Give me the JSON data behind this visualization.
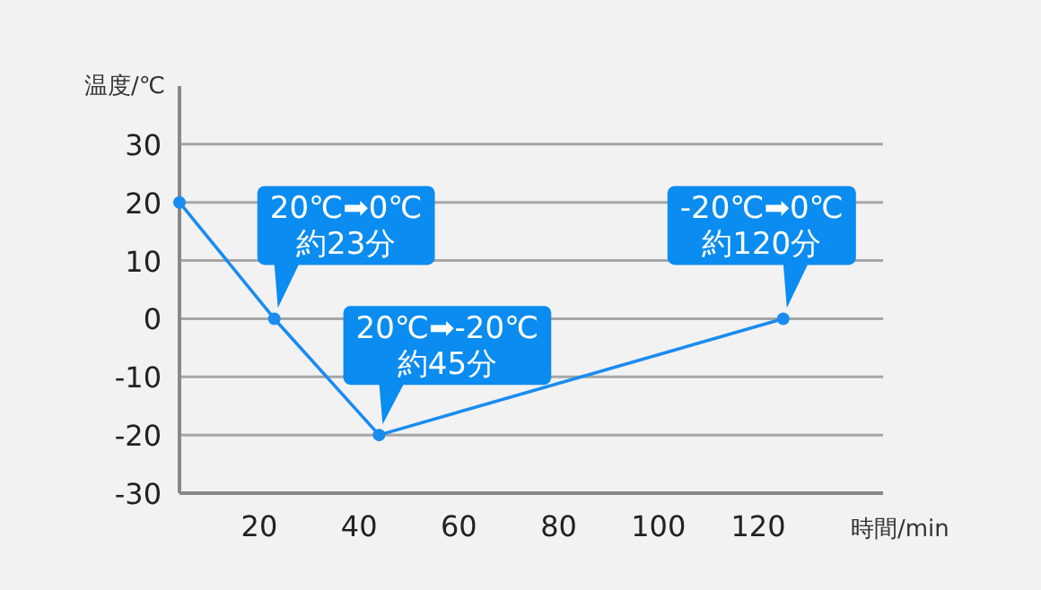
{
  "chart_data": {
    "type": "line",
    "xlabel": "時間/min",
    "ylabel": "温度/℃",
    "x": [
      4,
      23,
      44,
      125
    ],
    "series": [
      {
        "color": "#1a8cf0",
        "values": [
          20,
          0,
          -20,
          0
        ]
      }
    ],
    "xlim": [
      4,
      145
    ],
    "ylim": [
      -30,
      40
    ],
    "xticks": [
      20,
      40,
      60,
      80,
      100,
      120
    ],
    "yticks": [
      -30,
      -20,
      -10,
      0,
      10,
      20,
      30
    ],
    "grid": "y",
    "marker": "circle",
    "line_style": "solid",
    "annotations": [
      {
        "text": "20℃➡0℃\n約23分",
        "x": 23,
        "y": 0
      },
      {
        "text": "20℃➡-20℃\n約45分",
        "x": 44,
        "y": -20
      },
      {
        "text": "-20℃➡0℃\n約120分",
        "x": 125,
        "y": 0
      }
    ]
  }
}
